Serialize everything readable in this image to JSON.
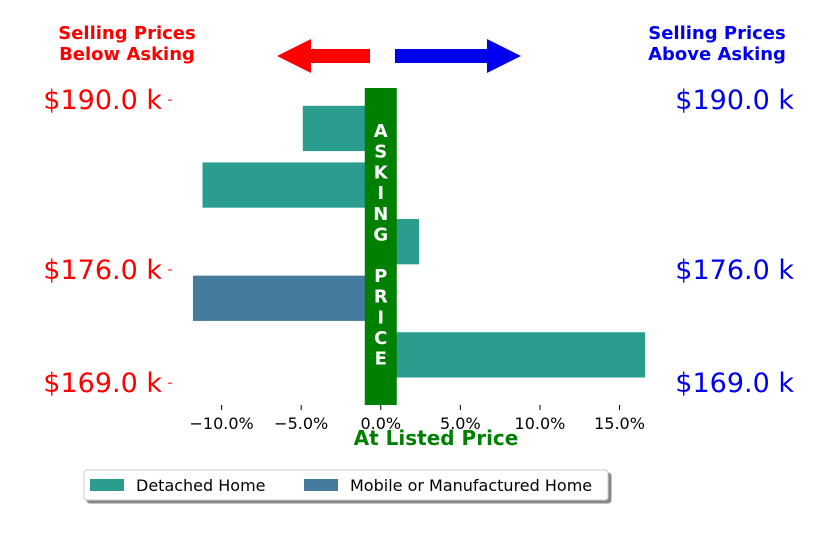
{
  "chart_data": {
    "type": "bar",
    "orientation": "horizontal",
    "xlabel": "At Listed Price",
    "header_left": [
      "Selling Prices",
      "Below Asking"
    ],
    "header_right": [
      "Selling Prices",
      "Above Asking"
    ],
    "center_label": [
      "A",
      "S",
      "K",
      "I",
      "N",
      "G",
      "",
      "P",
      "R",
      "I",
      "C",
      "E"
    ],
    "x_ticks": [
      "−10.0%",
      "−5.0%",
      "0.0%",
      "5.0%",
      "10.0%",
      "15.0%"
    ],
    "x_tick_values": [
      -10,
      -5,
      0,
      5,
      10,
      15
    ],
    "xlim": [
      -12.3,
      16.6
    ],
    "price_labels": [
      {
        "label": "$190.0 k",
        "row": 4.5
      },
      {
        "label": "$176.0 k",
        "row": 1.5
      },
      {
        "label": "$169.0 k",
        "row": -0.5
      }
    ],
    "ylim": [
      -0.85,
      4.75
    ],
    "bars": [
      {
        "series": "Detached Home",
        "row": 4,
        "value": -4.9
      },
      {
        "series": "Detached Home",
        "row": 3,
        "value": -11.2
      },
      {
        "series": "Detached Home",
        "row": 2,
        "value": 2.4
      },
      {
        "series": "Mobile or Manufactured Home",
        "row": 1,
        "value": -11.8
      },
      {
        "series": "Detached Home",
        "row": 0,
        "value": 16.6
      }
    ],
    "series": [
      {
        "name": "Detached Home",
        "color": "#2a9d8f"
      },
      {
        "name": "Mobile or Manufactured Home",
        "color": "#457b9d"
      }
    ],
    "legend_placement": "bottom-center",
    "grid": false
  },
  "colors": {
    "below": "#ff0000",
    "above": "#0000ee",
    "asking": "#008000"
  }
}
